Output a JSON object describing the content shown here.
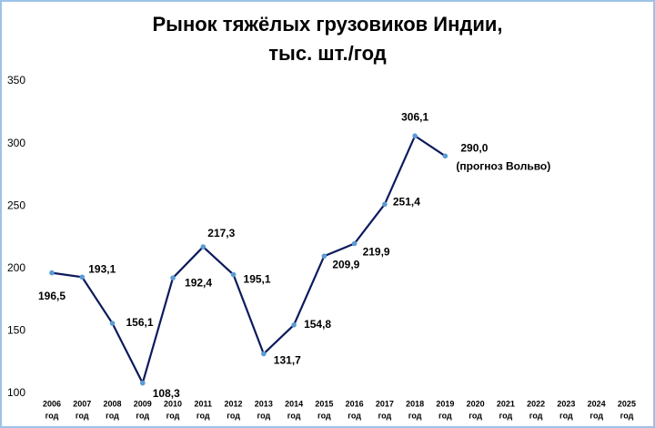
{
  "chart_data": {
    "type": "line",
    "title_lines": [
      "Рынок тяжёлых грузовиков Индии,",
      "тыс. шт./год"
    ],
    "categories": [
      "2006",
      "2007",
      "2008",
      "2009",
      "2010",
      "2011",
      "2012",
      "2013",
      "2014",
      "2015",
      "2016",
      "2017",
      "2018",
      "2019",
      "2020",
      "2021",
      "2022",
      "2023",
      "2024",
      "2025"
    ],
    "category_unit": "год",
    "series": [
      {
        "name": "Рынок",
        "color": "#0d1a5c",
        "marker_color": "#5b9bd5",
        "values": [
          196.5,
          193.1,
          156.1,
          108.3,
          192.4,
          217.3,
          195.1,
          131.7,
          154.8,
          209.9,
          219.9,
          251.4,
          306.1,
          290.0,
          null,
          null,
          null,
          null,
          null,
          null
        ],
        "value_labels": [
          "196,5",
          "193,1",
          "156,1",
          "108,3",
          "192,4",
          "217,3",
          "195,1",
          "131,7",
          "154,8",
          "209,9",
          "219,9",
          "251,4",
          "306,1",
          "290,0",
          null,
          null,
          null,
          null,
          null,
          null
        ]
      }
    ],
    "annotation": "(прогноз Вольво)",
    "ylim": [
      100,
      350
    ],
    "yticks": [
      100,
      150,
      200,
      250,
      300,
      350
    ],
    "grid": false
  }
}
